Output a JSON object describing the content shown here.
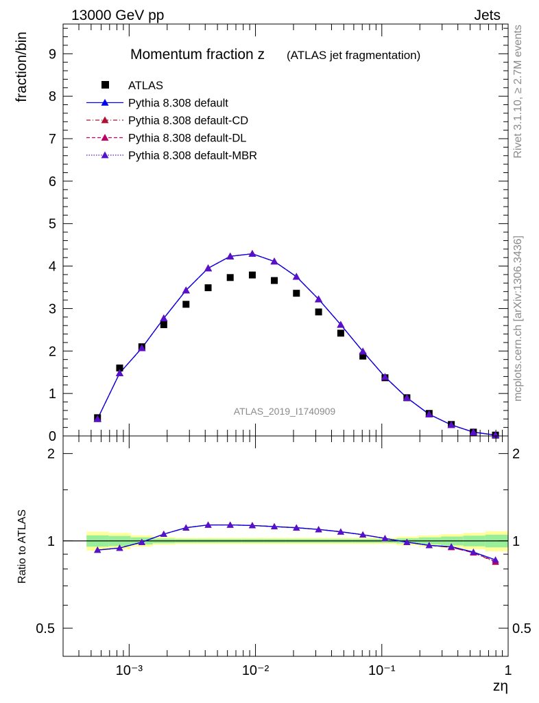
{
  "header": {
    "left": "13000 GeV pp",
    "right": "Jets"
  },
  "side_labels": {
    "rivet": "Rivet 3.1.10, ≥ 2.7M events",
    "source": "mcplots.cern.ch [arXiv:1306.3436]"
  },
  "chart_data": [
    {
      "type": "scatter",
      "panel": "main",
      "title_main": "Momentum fraction z",
      "title_sub": "(ATLAS jet fragmentation)",
      "ylabel": "fraction/bin",
      "xlabel": "zη",
      "x_scale": "log",
      "xlim": [
        0.0003,
        1.0
      ],
      "ylim": [
        0,
        9.7
      ],
      "yticks": [
        0,
        1,
        2,
        3,
        4,
        5,
        6,
        7,
        8,
        9
      ],
      "xticks": [
        0.001,
        0.01,
        0.1,
        1
      ],
      "xtick_labels": [
        "10⁻³",
        "10⁻²",
        "10⁻¹",
        "1"
      ],
      "watermark": "ATLAS_2019_I1740909",
      "legend_position": "top-left",
      "x": [
        0.000562,
        0.000841,
        0.00126,
        0.00188,
        0.00282,
        0.00422,
        0.00631,
        0.00944,
        0.0141,
        0.0211,
        0.0316,
        0.0473,
        0.0708,
        0.106,
        0.158,
        0.237,
        0.355,
        0.531,
        0.794
      ],
      "series": [
        {
          "name": "ATLAS",
          "marker": "square",
          "color": "#000000",
          "values": [
            0.43,
            1.6,
            2.1,
            2.62,
            3.1,
            3.49,
            3.73,
            3.79,
            3.66,
            3.36,
            2.92,
            2.42,
            1.88,
            1.37,
            0.9,
            0.53,
            0.27,
            0.09,
            0.02
          ]
        },
        {
          "name": "Pythia 8.308 default",
          "marker": "triangle",
          "line": "solid",
          "color": "#0000ee",
          "values": [
            0.4,
            1.48,
            2.07,
            2.77,
            3.43,
            3.95,
            4.23,
            4.29,
            4.11,
            3.75,
            3.22,
            2.62,
            1.99,
            1.39,
            0.9,
            0.51,
            0.26,
            0.09,
            0.02
          ]
        },
        {
          "name": "Pythia 8.308 default-CD",
          "marker": "triangle",
          "line": "dashdot",
          "color": "#aa1133",
          "values": [
            0.4,
            1.48,
            2.07,
            2.77,
            3.43,
            3.95,
            4.23,
            4.29,
            4.11,
            3.75,
            3.22,
            2.62,
            1.99,
            1.39,
            0.9,
            0.51,
            0.26,
            0.09,
            0.02
          ]
        },
        {
          "name": "Pythia 8.308 default-DL",
          "marker": "triangle",
          "line": "dashed",
          "color": "#bb0066",
          "values": [
            0.4,
            1.48,
            2.07,
            2.77,
            3.43,
            3.95,
            4.23,
            4.29,
            4.11,
            3.75,
            3.22,
            2.62,
            1.99,
            1.39,
            0.9,
            0.51,
            0.26,
            0.09,
            0.02
          ]
        },
        {
          "name": "Pythia 8.308 default-MBR",
          "marker": "triangle",
          "line": "dotted",
          "color": "#5511cc",
          "values": [
            0.4,
            1.48,
            2.07,
            2.77,
            3.43,
            3.95,
            4.23,
            4.29,
            4.11,
            3.75,
            3.22,
            2.62,
            1.99,
            1.39,
            0.9,
            0.51,
            0.26,
            0.09,
            0.02
          ]
        }
      ]
    },
    {
      "type": "line",
      "panel": "ratio",
      "ylabel": "Ratio to ATLAS",
      "y_scale": "log",
      "ylim": [
        0.4,
        2.3
      ],
      "yticks": [
        0.5,
        1,
        2
      ],
      "ytick_labels": [
        "0.5",
        "1",
        "2"
      ],
      "reference": 1,
      "x": [
        0.000562,
        0.000841,
        0.00126,
        0.00188,
        0.00282,
        0.00422,
        0.00631,
        0.00944,
        0.0141,
        0.0211,
        0.0316,
        0.0473,
        0.0708,
        0.106,
        0.158,
        0.237,
        0.355,
        0.531,
        0.794
      ],
      "bands": {
        "edges": [
          0.00046,
          0.00069,
          0.00103,
          0.00154,
          0.00231,
          0.00346,
          0.00518,
          0.00776,
          0.0116,
          0.0174,
          0.026,
          0.039,
          0.0584,
          0.0875,
          0.131,
          0.196,
          0.294,
          0.44,
          0.659,
          1.0
        ],
        "yellow_half": [
          0.075,
          0.065,
          0.045,
          0.03,
          0.025,
          0.025,
          0.025,
          0.025,
          0.025,
          0.025,
          0.025,
          0.025,
          0.025,
          0.025,
          0.035,
          0.045,
          0.055,
          0.065,
          0.08
        ],
        "green_half": [
          0.045,
          0.04,
          0.028,
          0.018,
          0.015,
          0.015,
          0.015,
          0.015,
          0.015,
          0.015,
          0.015,
          0.015,
          0.015,
          0.015,
          0.02,
          0.028,
          0.035,
          0.042,
          0.05
        ],
        "yellow_color": "#ffff99",
        "green_color": "#99ee99"
      },
      "series": [
        {
          "name": "Pythia 8.308 default",
          "color": "#0000ee",
          "line": "solid",
          "values": [
            0.93,
            0.945,
            0.99,
            1.055,
            1.11,
            1.135,
            1.135,
            1.13,
            1.12,
            1.11,
            1.095,
            1.075,
            1.05,
            1.02,
            0.99,
            0.965,
            0.955,
            0.915,
            0.86
          ]
        },
        {
          "name": "Pythia 8.308 default-CD",
          "color": "#aa1133",
          "line": "dashdot",
          "values": [
            0.93,
            0.945,
            0.99,
            1.055,
            1.11,
            1.135,
            1.135,
            1.13,
            1.12,
            1.11,
            1.095,
            1.075,
            1.05,
            1.02,
            0.99,
            0.965,
            0.95,
            0.91,
            0.845
          ]
        },
        {
          "name": "Pythia 8.308 default-DL",
          "color": "#bb0066",
          "line": "dashed",
          "values": [
            0.93,
            0.945,
            0.99,
            1.055,
            1.11,
            1.135,
            1.135,
            1.13,
            1.12,
            1.11,
            1.095,
            1.075,
            1.05,
            1.02,
            0.99,
            0.965,
            0.95,
            0.91,
            0.85
          ]
        },
        {
          "name": "Pythia 8.308 default-MBR",
          "color": "#5511cc",
          "line": "dotted",
          "values": [
            0.93,
            0.945,
            0.99,
            1.055,
            1.11,
            1.135,
            1.135,
            1.13,
            1.12,
            1.11,
            1.095,
            1.075,
            1.05,
            1.02,
            0.99,
            0.965,
            0.955,
            0.915,
            0.86
          ]
        }
      ]
    }
  ]
}
